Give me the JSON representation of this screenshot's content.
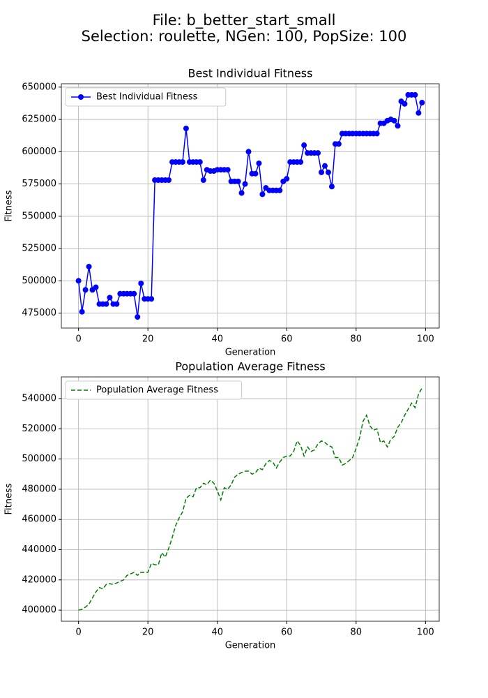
{
  "title": [
    "File: b_better_start_small",
    "Selection: roulette, NGen: 100, PopSize: 100"
  ],
  "chart_data": [
    {
      "type": "line",
      "title": "Best Individual Fitness",
      "xlabel": "Generation",
      "ylabel": "Fitness",
      "x": [
        0,
        1,
        2,
        3,
        4,
        5,
        6,
        7,
        8,
        9,
        10,
        11,
        12,
        13,
        14,
        15,
        16,
        17,
        18,
        19,
        20,
        21,
        22,
        23,
        24,
        25,
        26,
        27,
        28,
        29,
        30,
        31,
        32,
        33,
        34,
        35,
        36,
        37,
        38,
        39,
        40,
        41,
        42,
        43,
        44,
        45,
        46,
        47,
        48,
        49,
        50,
        51,
        52,
        53,
        54,
        55,
        56,
        57,
        58,
        59,
        60,
        61,
        62,
        63,
        64,
        65,
        66,
        67,
        68,
        69,
        70,
        71,
        72,
        73,
        74,
        75,
        76,
        77,
        78,
        79,
        80,
        81,
        82,
        83,
        84,
        85,
        86,
        87,
        88,
        89,
        90,
        91,
        92,
        93,
        94,
        95,
        96,
        97,
        98,
        99
      ],
      "series": [
        {
          "name": "Best Individual Fitness",
          "color": "#0000ff",
          "marker": "o",
          "linestyle": "solid",
          "values": [
            500000,
            476000,
            493000,
            511000,
            493000,
            495000,
            482000,
            482000,
            482000,
            487000,
            482000,
            482000,
            490000,
            490000,
            490000,
            490000,
            490000,
            472000,
            498000,
            486000,
            486000,
            486000,
            578000,
            578000,
            578000,
            578000,
            578000,
            592000,
            592000,
            592000,
            592000,
            618000,
            592000,
            592000,
            592000,
            592000,
            578000,
            586000,
            585000,
            585000,
            586000,
            586000,
            586000,
            586000,
            577000,
            577000,
            577000,
            568000,
            575000,
            600000,
            583000,
            583000,
            591000,
            567000,
            572000,
            570000,
            570000,
            570000,
            570000,
            577000,
            579000,
            592000,
            592000,
            592000,
            592000,
            605000,
            599000,
            599000,
            599000,
            599000,
            584000,
            589000,
            584000,
            573000,
            606000,
            606000,
            614000,
            614000,
            614000,
            614000,
            614000,
            614000,
            614000,
            614000,
            614000,
            614000,
            614000,
            622000,
            622000,
            624000,
            625000,
            624000,
            620000,
            639000,
            637000,
            644000,
            644000,
            644000,
            630000,
            638000
          ]
        }
      ],
      "xlim": [
        -4.95,
        103.95
      ],
      "ylim": [
        463400,
        652600
      ],
      "xticks": [
        0,
        20,
        40,
        60,
        80,
        100
      ],
      "yticks": [
        475000,
        500000,
        525000,
        550000,
        575000,
        600000,
        625000,
        650000
      ],
      "grid": true,
      "legend": "upper left"
    },
    {
      "type": "line",
      "title": "Population Average Fitness",
      "xlabel": "Generation",
      "ylabel": "Fitness",
      "x": [
        0,
        1,
        2,
        3,
        4,
        5,
        6,
        7,
        8,
        9,
        10,
        11,
        12,
        13,
        14,
        15,
        16,
        17,
        18,
        19,
        20,
        21,
        22,
        23,
        24,
        25,
        26,
        27,
        28,
        29,
        30,
        31,
        32,
        33,
        34,
        35,
        36,
        37,
        38,
        39,
        40,
        41,
        42,
        43,
        44,
        45,
        46,
        47,
        48,
        49,
        50,
        51,
        52,
        53,
        54,
        55,
        56,
        57,
        58,
        59,
        60,
        61,
        62,
        63,
        64,
        65,
        66,
        67,
        68,
        69,
        70,
        71,
        72,
        73,
        74,
        75,
        76,
        77,
        78,
        79,
        80,
        81,
        82,
        83,
        84,
        85,
        86,
        87,
        88,
        89,
        90,
        91,
        92,
        93,
        94,
        95,
        96,
        97,
        98,
        99
      ],
      "series": [
        {
          "name": "Population Average Fitness",
          "color": "#008000",
          "marker": null,
          "linestyle": "dashed",
          "values": [
            400000,
            400500,
            402000,
            404000,
            408000,
            412000,
            415000,
            414000,
            417000,
            417500,
            417000,
            418000,
            419000,
            420000,
            423000,
            424000,
            425000,
            423000,
            425000,
            425000,
            425000,
            431000,
            430000,
            430000,
            438000,
            435000,
            441000,
            448000,
            456000,
            461000,
            465000,
            474000,
            476000,
            475000,
            481000,
            481000,
            484000,
            483000,
            486000,
            484000,
            479000,
            473000,
            481000,
            480000,
            483000,
            488000,
            490000,
            491000,
            492000,
            492000,
            490000,
            491000,
            494000,
            493000,
            497000,
            499000,
            498000,
            494000,
            498000,
            501000,
            502000,
            502000,
            505000,
            512000,
            509000,
            502000,
            508000,
            505000,
            506000,
            510000,
            512000,
            511000,
            509000,
            508000,
            501000,
            501000,
            496000,
            497000,
            499000,
            501000,
            507000,
            514000,
            525000,
            529000,
            522000,
            519000,
            520000,
            511000,
            512000,
            508000,
            513000,
            515000,
            521000,
            524000,
            529000,
            533000,
            537000,
            534000,
            543000,
            547000
          ]
        }
      ],
      "xlim": [
        -4.95,
        103.95
      ],
      "ylim": [
        392650,
        554350
      ],
      "xticks": [
        0,
        20,
        40,
        60,
        80,
        100
      ],
      "yticks": [
        400000,
        420000,
        440000,
        460000,
        480000,
        500000,
        520000,
        540000
      ],
      "grid": true,
      "legend": "upper left"
    }
  ]
}
